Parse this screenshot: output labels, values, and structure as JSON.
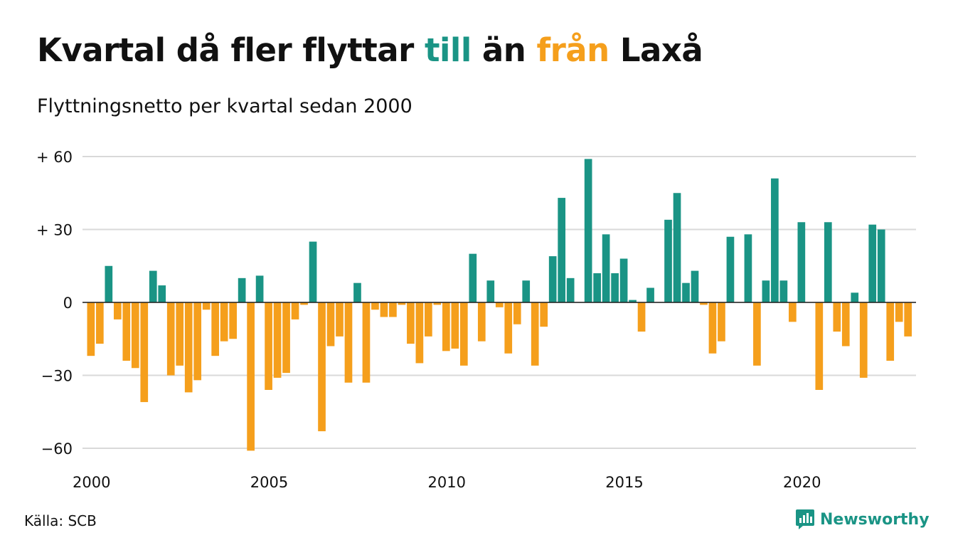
{
  "title": {
    "part1": "Kvartal då fler flyttar ",
    "to_word": "till",
    "part2": " än ",
    "from_word": "från",
    "part3": " Laxå"
  },
  "subtitle": "Flyttningsnetto per kvartal sedan 2000",
  "source": "Källa: SCB",
  "brand": "Newsworthy",
  "colors": {
    "positive": "#1a9485",
    "negative": "#f59f1c",
    "grid": "#d9d9d9",
    "text": "#111111"
  },
  "chart_data": {
    "type": "bar",
    "title": "Kvartal då fler flyttar till än från Laxå",
    "subtitle": "Flyttningsnetto per kvartal sedan 2000",
    "xlabel": "",
    "ylabel": "",
    "ylim": [
      -63,
      63
    ],
    "yticks": [
      60,
      30,
      0,
      -30,
      -60
    ],
    "ytick_labels": [
      "+ 60",
      "+ 30",
      "0",
      "−30",
      "−60"
    ],
    "xticks": [
      2000,
      2005,
      2010,
      2015,
      2020
    ],
    "xtick_labels": [
      "2000",
      "2005",
      "2010",
      "2015",
      "2020"
    ],
    "grid": true,
    "legend": "none",
    "start_year": 2000,
    "start_quarter": 1,
    "values": [
      -22,
      -17,
      15,
      -7,
      -24,
      -27,
      -41,
      13,
      7,
      -30,
      -26,
      -37,
      -32,
      -3,
      -22,
      -16,
      -15,
      10,
      -61,
      11,
      -36,
      -31,
      -29,
      -7,
      -1,
      25,
      -53,
      -18,
      -14,
      -33,
      8,
      -33,
      -3,
      -6,
      -6,
      -1,
      -17,
      -25,
      -14,
      -1,
      -20,
      -19,
      -26,
      20,
      -16,
      9,
      -2,
      -21,
      -9,
      9,
      -26,
      -10,
      19,
      43,
      10,
      0,
      59,
      12,
      28,
      12,
      18,
      1,
      -12,
      6,
      0,
      34,
      45,
      8,
      13,
      -1,
      -21,
      -16,
      27,
      0,
      28,
      -26,
      9,
      51,
      9,
      -8,
      33,
      0,
      -36,
      33,
      -12,
      -18,
      4,
      -31,
      32,
      30,
      -24,
      -8,
      -14
    ]
  }
}
